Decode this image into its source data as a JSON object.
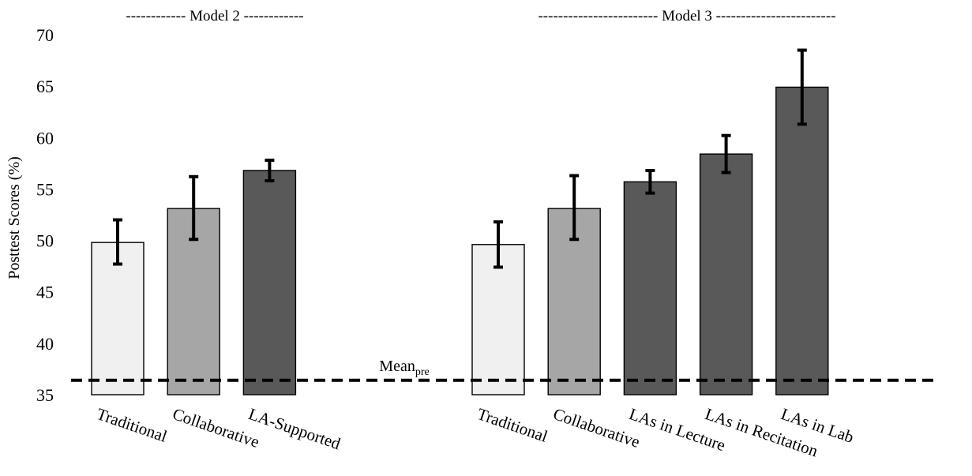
{
  "chart_data": {
    "type": "bar",
    "ylabel": "Posttest Scores (%)",
    "ylim": [
      35,
      70
    ],
    "yticks": [
      35,
      40,
      45,
      50,
      55,
      60,
      65,
      70
    ],
    "grid": false,
    "groups": [
      {
        "label": "------------ Model 2 ------------",
        "categories": [
          "Traditional",
          "Collaborative",
          "LA-Supported"
        ],
        "values": [
          49.8,
          53.1,
          56.8
        ],
        "error_low": [
          47.7,
          50.1,
          55.8
        ],
        "error_high": [
          52.0,
          56.2,
          57.8
        ],
        "colors": [
          "#f0f0f0",
          "#a6a6a6",
          "#595959"
        ]
      },
      {
        "label": "------------------------ Model 3 ------------------------",
        "categories": [
          "Traditional",
          "Collaborative",
          "LAs in Lecture",
          "LAs in Recitation",
          "LAs in Lab"
        ],
        "values": [
          49.6,
          53.1,
          55.7,
          58.4,
          64.9
        ],
        "error_low": [
          47.4,
          50.1,
          54.6,
          56.6,
          61.3
        ],
        "error_high": [
          51.8,
          56.3,
          56.8,
          60.2,
          68.5
        ],
        "colors": [
          "#f0f0f0",
          "#a6a6a6",
          "#595959",
          "#595959",
          "#595959"
        ]
      }
    ],
    "reference_line": {
      "value": 36.4,
      "label": "Mean",
      "label_subscript": "pre",
      "style": "dashed"
    }
  }
}
